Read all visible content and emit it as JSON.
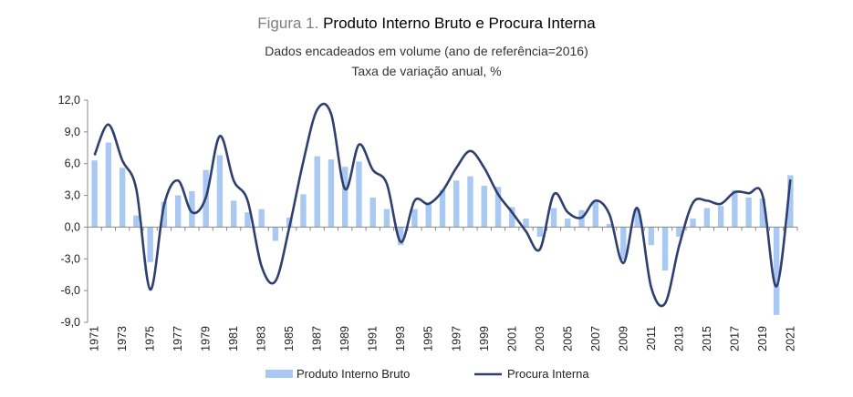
{
  "title": {
    "prefix": "Figura 1.",
    "main": "Produto Interno Bruto e Procura Interna"
  },
  "subtitle": [
    "Dados encadeados em volume (ano de referência=2016)",
    "Taxa de variação anual, %"
  ],
  "colors": {
    "bar": "#a9c8f2",
    "line": "#2f3f6f",
    "axis": "#888888"
  },
  "chart_data": {
    "type": "bar+line",
    "x": [
      1971,
      1972,
      1973,
      1974,
      1975,
      1976,
      1977,
      1978,
      1979,
      1980,
      1981,
      1982,
      1983,
      1984,
      1985,
      1986,
      1987,
      1988,
      1989,
      1990,
      1991,
      1992,
      1993,
      1994,
      1995,
      1996,
      1997,
      1998,
      1999,
      2000,
      2001,
      2002,
      2003,
      2004,
      2005,
      2006,
      2007,
      2008,
      2009,
      2010,
      2011,
      2012,
      2013,
      2014,
      2015,
      2016,
      2017,
      2018,
      2019,
      2020,
      2021
    ],
    "x_tick_labels": [
      "1971",
      "1973",
      "1975",
      "1977",
      "1979",
      "1981",
      "1983",
      "1985",
      "1987",
      "1989",
      "1991",
      "1993",
      "1995",
      "1997",
      "1999",
      "2001",
      "2003",
      "2005",
      "2007",
      "2009",
      "2011",
      "2013",
      "2015",
      "2017",
      "2019",
      "2021"
    ],
    "y_tick_labels": [
      "12,0",
      "9,0",
      "6,0",
      "3,0",
      "0,0",
      "-3,0",
      "-6,0",
      "-9,0"
    ],
    "ylim": [
      -9,
      12
    ],
    "series": [
      {
        "name": "Produto Interno Bruto",
        "kind": "bar",
        "values": [
          6.3,
          8.0,
          5.6,
          1.1,
          -3.3,
          2.4,
          3.0,
          3.4,
          5.4,
          6.8,
          2.5,
          1.4,
          1.7,
          -1.3,
          0.9,
          3.1,
          6.7,
          6.4,
          5.7,
          6.2,
          2.8,
          1.7,
          -1.7,
          1.7,
          2.3,
          3.5,
          4.4,
          4.8,
          3.9,
          3.8,
          1.9,
          0.8,
          -0.9,
          1.8,
          0.8,
          1.6,
          2.5,
          0.3,
          -3.1,
          1.7,
          -1.7,
          -4.1,
          -0.9,
          0.8,
          1.8,
          2.0,
          3.5,
          2.8,
          2.7,
          -8.3,
          4.9
        ]
      },
      {
        "name": "Procura Interna",
        "kind": "line",
        "values": [
          6.8,
          9.7,
          6.3,
          3.6,
          -5.9,
          2.1,
          4.4,
          1.4,
          2.8,
          8.6,
          4.4,
          2.5,
          -3.7,
          -5.1,
          0.0,
          6.2,
          11.1,
          10.7,
          3.6,
          7.8,
          5.4,
          4.1,
          -1.4,
          2.5,
          2.2,
          3.4,
          5.6,
          7.2,
          5.6,
          3.1,
          1.4,
          -0.4,
          -2.1,
          3.1,
          1.4,
          0.9,
          2.5,
          1.2,
          -3.4,
          1.8,
          -5.7,
          -7.2,
          -1.8,
          2.3,
          2.5,
          2.2,
          3.3,
          3.2,
          3.0,
          -5.6,
          4.5
        ]
      }
    ],
    "legend": "bottom"
  }
}
